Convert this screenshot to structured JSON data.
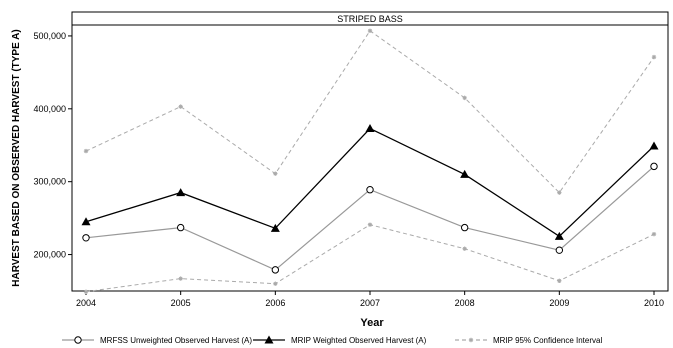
{
  "chart_data": {
    "type": "line",
    "title": "STRIPED BASS",
    "xlabel": "Year",
    "ylabel": "HARVEST BASED ON OBSERVED HARVEST (TYPE A)",
    "x": [
      2004,
      2005,
      2006,
      2007,
      2008,
      2009,
      2010
    ],
    "x_tick_labels": [
      "2004",
      "2005",
      "2006",
      "2007",
      "2008",
      "2009",
      "2010"
    ],
    "ylim": [
      150000,
      515000
    ],
    "y_ticks": [
      200000,
      300000,
      400000,
      500000
    ],
    "y_tick_labels": [
      "200,000",
      "300,000",
      "400,000",
      "500,000"
    ],
    "grid": false,
    "legend_position": "bottom",
    "series": [
      {
        "name": "MRFSS Unweighted Observed Harvest (A)",
        "values": [
          223000,
          237000,
          179000,
          289000,
          237000,
          206000,
          321000
        ],
        "color": "#999999",
        "marker": "circle",
        "line_style": "solid"
      },
      {
        "name": "MRIP Weighted Observed Harvest (A)",
        "values": [
          245000,
          285000,
          236000,
          373000,
          310000,
          225000,
          349000
        ],
        "color": "#000000",
        "marker": "triangle",
        "line_style": "solid"
      },
      {
        "name": "MRIP 95% Confidence Interval",
        "upper": [
          342000,
          403000,
          311000,
          507000,
          415000,
          285000,
          471000
        ],
        "lower": [
          149000,
          167000,
          160000,
          241000,
          208000,
          164000,
          228000
        ],
        "color": "#aaaaaa",
        "marker": "star",
        "line_style": "dashed"
      }
    ]
  }
}
